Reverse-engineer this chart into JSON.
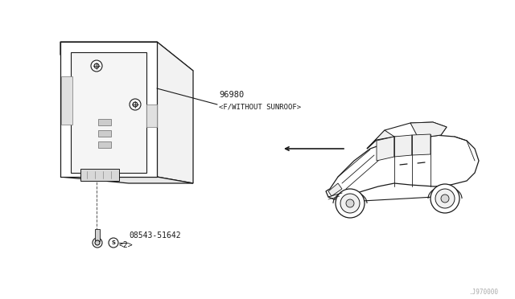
{
  "background_color": "#ffffff",
  "line_color": "#1a1a1a",
  "text_color": "#1a1a1a",
  "part_label_1": "96980",
  "part_label_1b": "<F/WITHOUT SUNROOF>",
  "part_label_2": "08543-51642",
  "part_label_2b": "<2>",
  "watermark": ".J970000",
  "fig_width": 6.4,
  "fig_height": 3.72,
  "dpi": 100
}
